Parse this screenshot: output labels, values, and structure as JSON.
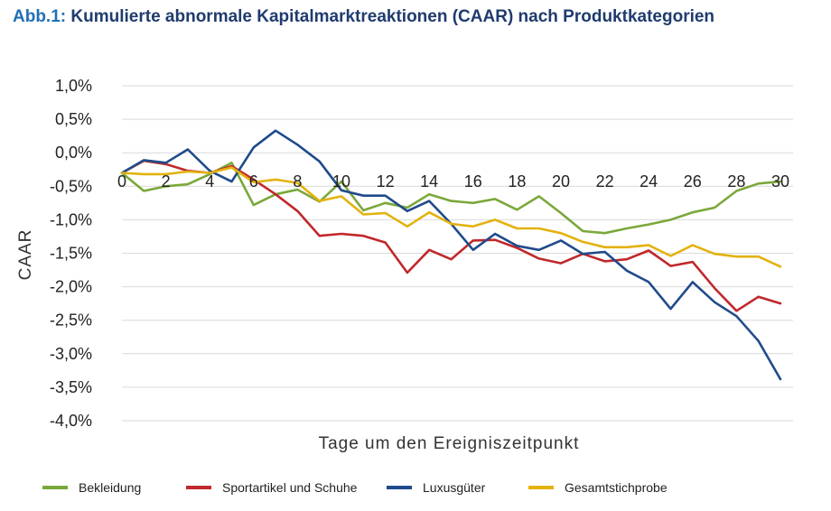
{
  "figure": {
    "label": "Abb.1:",
    "title": "Kumulierte abnormale Kapitalmarktreaktionen (CAAR) nach Produktkategorien"
  },
  "chart_data": {
    "type": "line",
    "xlabel": "Tage um den Ereigniszeitpunkt",
    "ylabel": "CAAR",
    "xlim": [
      0,
      30
    ],
    "ylim": [
      -4.0,
      1.0
    ],
    "x_ticks": [
      0,
      2,
      4,
      6,
      8,
      10,
      12,
      14,
      16,
      18,
      20,
      22,
      24,
      26,
      28,
      30
    ],
    "y_ticks": [
      1.0,
      0.5,
      0.0,
      -0.5,
      -1.0,
      -1.5,
      -2.0,
      -2.5,
      -3.0,
      -3.5,
      -4.0
    ],
    "y_tick_labels": [
      "1,0%",
      "0,5%",
      "0,0%",
      "-0,5%",
      "-1,0%",
      "-1,5%",
      "-2,0%",
      "-2,5%",
      "-3,0%",
      "-3,5%",
      "-4,0%"
    ],
    "grid": true,
    "legend_position": "bottom",
    "x": [
      0,
      1,
      2,
      3,
      4,
      5,
      6,
      7,
      8,
      9,
      10,
      11,
      12,
      13,
      14,
      15,
      16,
      17,
      18,
      19,
      20,
      21,
      22,
      23,
      24,
      25,
      26,
      27,
      28,
      29,
      30
    ],
    "series": [
      {
        "name": "Bekleidung",
        "color": "#7aa83a",
        "values": [
          -0.3,
          -0.57,
          -0.5,
          -0.47,
          -0.32,
          -0.15,
          -0.78,
          -0.62,
          -0.55,
          -0.73,
          -0.43,
          -0.86,
          -0.75,
          -0.82,
          -0.62,
          -0.72,
          -0.75,
          -0.69,
          -0.85,
          -0.65,
          -0.9,
          -1.17,
          -1.2,
          -1.13,
          -1.07,
          -1.0,
          -0.89,
          -0.82,
          -0.57,
          -0.46,
          -0.43
        ]
      },
      {
        "name": "Sportartikel und Schuhe",
        "color": "#c0282b",
        "values": [
          -0.3,
          -0.12,
          -0.17,
          -0.27,
          -0.3,
          -0.2,
          -0.4,
          -0.62,
          -0.87,
          -1.24,
          -1.21,
          -1.24,
          -1.34,
          -1.79,
          -1.45,
          -1.59,
          -1.31,
          -1.3,
          -1.42,
          -1.58,
          -1.65,
          -1.51,
          -1.62,
          -1.59,
          -1.46,
          -1.69,
          -1.63,
          -2.02,
          -2.36,
          -2.15,
          -2.25
        ]
      },
      {
        "name": "Luxusgüter",
        "color": "#1f4b8c",
        "values": [
          -0.3,
          -0.11,
          -0.15,
          0.05,
          -0.27,
          -0.43,
          0.08,
          0.33,
          0.12,
          -0.13,
          -0.56,
          -0.64,
          -0.64,
          -0.87,
          -0.72,
          -1.06,
          -1.45,
          -1.21,
          -1.39,
          -1.45,
          -1.31,
          -1.51,
          -1.48,
          -1.76,
          -1.93,
          -2.33,
          -1.93,
          -2.23,
          -2.44,
          -2.81,
          -3.38
        ]
      },
      {
        "name": "Gesamtstichprobe",
        "color": "#e3b20f",
        "values": [
          -0.3,
          -0.32,
          -0.32,
          -0.28,
          -0.3,
          -0.22,
          -0.44,
          -0.4,
          -0.45,
          -0.72,
          -0.65,
          -0.92,
          -0.9,
          -1.1,
          -0.89,
          -1.06,
          -1.1,
          -1.0,
          -1.13,
          -1.13,
          -1.2,
          -1.33,
          -1.41,
          -1.41,
          -1.38,
          -1.54,
          -1.38,
          -1.51,
          -1.55,
          -1.55,
          -1.7
        ]
      }
    ]
  }
}
